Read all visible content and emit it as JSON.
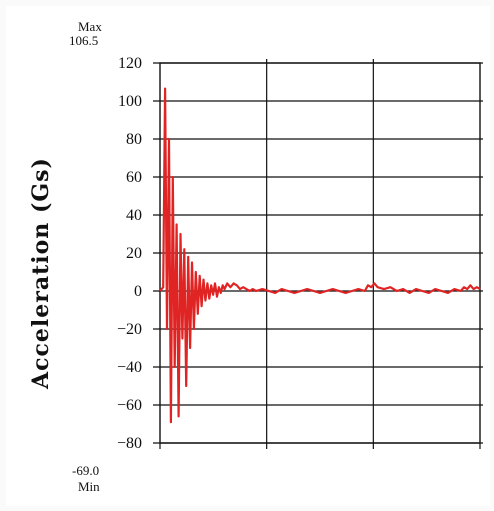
{
  "chart_data": {
    "type": "line",
    "title": "",
    "xlabel": "",
    "ylabel": "Acceleration (Gs)",
    "ylim": [
      -80,
      120
    ],
    "yticks": [
      120,
      100,
      80,
      60,
      40,
      20,
      0,
      -20,
      -40,
      -60,
      -80
    ],
    "ytick_labels": [
      "120",
      "100",
      "80",
      "60",
      "40",
      "20",
      "0",
      "−20",
      "−40",
      "−60",
      "−80"
    ],
    "xlim": [
      0,
      100
    ],
    "grid": true,
    "max_label": "Max",
    "max_value": "106.5",
    "min_label": "Min",
    "min_value": "-69.0",
    "colors": {
      "series": "#e02424",
      "grid": "#111111"
    },
    "series": [
      {
        "x": [
          0,
          1.0,
          1.6,
          2.2,
          2.8,
          3.4,
          4.0,
          4.6,
          5.2,
          5.8,
          6.4,
          7.0,
          7.6,
          8.2,
          8.8,
          9.4,
          10.0,
          10.6,
          11.2,
          11.8,
          12.4,
          13.0,
          13.6,
          14.2,
          14.8,
          15.4,
          16.0,
          16.6,
          17.2,
          17.8,
          18.4,
          19.0,
          19.6,
          20.2,
          21.0,
          22.0,
          23.0,
          24.0,
          25.0,
          26.0,
          27.0,
          28.0,
          29.0,
          30.0,
          32.0,
          34.0,
          36.0,
          38.0,
          40.0,
          42.0,
          44.0,
          46.0,
          48.0,
          50.0,
          52.0,
          54.0,
          56.0,
          58.0,
          60.0,
          62.0,
          64.0,
          65.0,
          66.0,
          67.0,
          68.0,
          70.0,
          72.0,
          74.0,
          76.0,
          78.0,
          80.0,
          82.0,
          84.0,
          86.0,
          88.0,
          90.0,
          92.0,
          94.0,
          95.0,
          96.0,
          97.0,
          98.0,
          99.0,
          100.0
        ],
        "y": [
          0,
          2,
          106.5,
          -20,
          80,
          -69,
          60,
          -40,
          35,
          -66,
          30,
          -25,
          22,
          -50,
          18,
          -30,
          15,
          -20,
          10,
          -12,
          8,
          -8,
          6,
          -5,
          4,
          -4,
          3,
          -2,
          4,
          -3,
          2,
          -1,
          3,
          1,
          4,
          2,
          4,
          3,
          1,
          2,
          1,
          0,
          1,
          0,
          1,
          0,
          -1,
          1,
          0,
          -1,
          0,
          1,
          0,
          -1,
          0,
          1,
          0,
          -1,
          0,
          1,
          0,
          3,
          2,
          4,
          2,
          1,
          2,
          0,
          1,
          -1,
          1,
          0,
          -1,
          1,
          0,
          -1,
          1,
          0,
          2,
          1,
          3,
          1,
          2,
          1
        ]
      }
    ]
  }
}
